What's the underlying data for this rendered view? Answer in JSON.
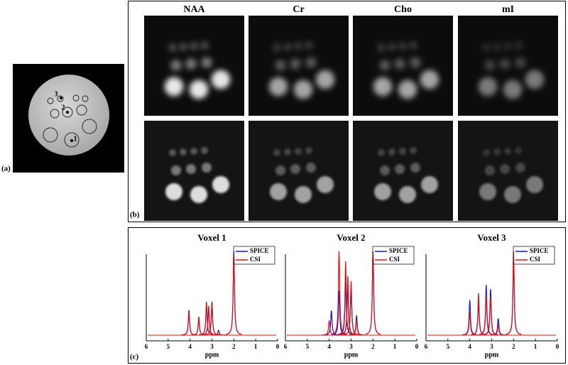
{
  "panels": {
    "a": "(a)",
    "b": "(b)",
    "c": "(c)"
  },
  "phantom_labels": [
    "1",
    "2",
    "3"
  ],
  "metabolite_maps": {
    "columns": [
      "NAA",
      "Cr",
      "Cho",
      "mI"
    ]
  },
  "chart_data": [
    {
      "type": "spectrum",
      "title": "Voxel 1",
      "xlabel": "ppm",
      "xlim": [
        6,
        0
      ],
      "xticks": [
        6,
        5,
        4,
        3,
        2,
        1,
        0
      ],
      "series": [
        {
          "name": "SPICE",
          "color": "#1010e0",
          "x": [
            4.05,
            3.6,
            3.25,
            3.15,
            3.0,
            2.7,
            2.0
          ],
          "values": [
            0.3,
            0.2,
            0.36,
            0.32,
            0.4,
            0.06,
            1.0
          ]
        },
        {
          "name": "CSI",
          "color": "#e01010",
          "x": [
            4.05,
            3.6,
            3.25,
            3.15,
            3.0,
            2.7,
            2.0
          ],
          "values": [
            0.28,
            0.22,
            0.4,
            0.35,
            0.38,
            0.05,
            0.98
          ]
        }
      ]
    },
    {
      "type": "spectrum",
      "title": "Voxel 2",
      "xlabel": "ppm",
      "xlim": [
        6,
        0
      ],
      "xticks": [
        6,
        5,
        4,
        3,
        2,
        1,
        0
      ],
      "series": [
        {
          "name": "SPICE",
          "color": "#1010e0",
          "x": [
            3.9,
            3.55,
            3.25,
            3.15,
            3.0,
            2.75,
            2.0
          ],
          "values": [
            0.25,
            0.45,
            0.55,
            0.5,
            0.52,
            0.2,
            0.85
          ]
        },
        {
          "name": "CSI",
          "color": "#e01010",
          "x": [
            4.0,
            3.55,
            3.25,
            3.15,
            3.0,
            2.75,
            2.0
          ],
          "values": [
            0.15,
            0.85,
            0.75,
            0.6,
            0.55,
            0.15,
            0.85
          ]
        }
      ]
    },
    {
      "type": "spectrum",
      "title": "Voxel 3",
      "xlabel": "ppm",
      "xlim": [
        6,
        0
      ],
      "xticks": [
        6,
        5,
        4,
        3,
        2,
        1,
        0
      ],
      "series": [
        {
          "name": "SPICE",
          "color": "#1010e0",
          "x": [
            4.0,
            3.6,
            3.25,
            3.05,
            2.7,
            2.0
          ],
          "values": [
            0.42,
            0.42,
            0.6,
            0.55,
            0.2,
            0.9
          ]
        },
        {
          "name": "CSI",
          "color": "#e01010",
          "x": [
            4.0,
            3.6,
            3.25,
            3.05,
            2.7,
            2.0
          ],
          "values": [
            0.28,
            0.5,
            0.48,
            0.45,
            0.12,
            1.0
          ]
        }
      ]
    }
  ]
}
